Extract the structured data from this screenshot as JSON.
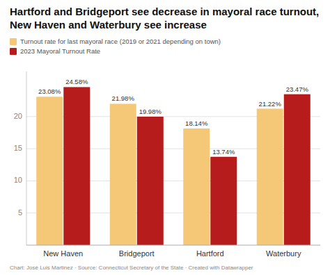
{
  "chart_data": {
    "type": "bar",
    "title": "Hartford and Bridgeport see decrease in mayoral race turnout, New Haven and Waterbury see increase",
    "caption": "Chart: José Luis Martinez · Source: Connecticut Secretary of the State · Created with Datawrapper",
    "categories": [
      "New Haven",
      "Bridgeport",
      "Hartford",
      "Waterbury"
    ],
    "series": [
      {
        "name": "Turnout rate for last mayoral race (2019 or 2021 depending on town)",
        "color": "#F5C878",
        "values": [
          23.08,
          21.98,
          18.14,
          21.22
        ],
        "value_labels": [
          "23.08%",
          "21.98%",
          "18.14%",
          "21.22%"
        ]
      },
      {
        "name": "2023 Mayoral Turnout Rate",
        "color": "#B71C1C",
        "values": [
          24.58,
          19.98,
          13.74,
          23.47
        ],
        "value_labels": [
          "24.58%",
          "19.98%",
          "13.74%",
          "23.47%"
        ]
      }
    ],
    "ylim": [
      0,
      27
    ],
    "yticks": [
      5,
      10,
      15,
      20
    ],
    "grid": true,
    "legend": "top-left",
    "data_labels": true
  }
}
